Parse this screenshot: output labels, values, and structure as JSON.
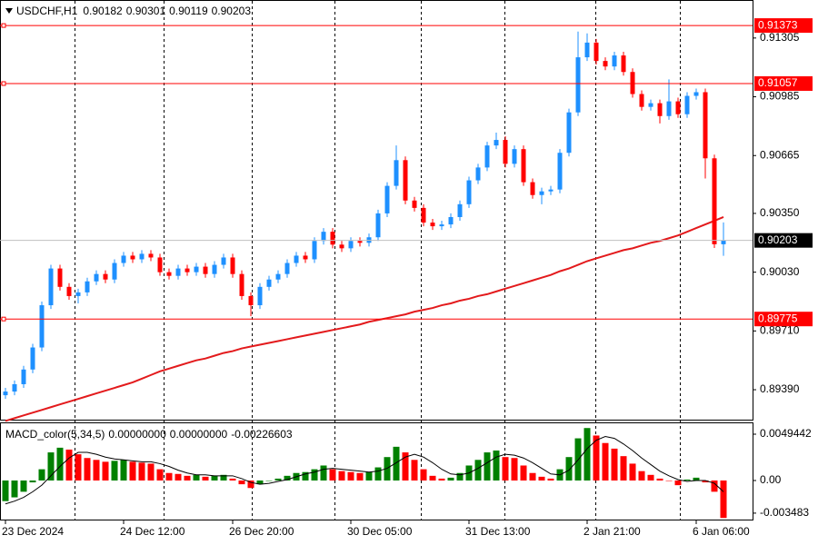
{
  "chart_data": [
    {
      "type": "candlestick",
      "symbol": "USDCHF,H1",
      "categories": [
        "23 Dec 2024",
        null,
        null,
        null,
        null,
        null,
        null,
        null,
        null,
        null,
        null,
        null,
        null,
        "24 Dec 12:00",
        null,
        null,
        null,
        null,
        null,
        null,
        null,
        null,
        null,
        null,
        null,
        "26 Dec 20:00",
        null,
        null,
        null,
        null,
        null,
        null,
        null,
        null,
        null,
        null,
        null,
        null,
        "30 Dec 05:00",
        null,
        null,
        null,
        null,
        null,
        null,
        null,
        null,
        null,
        null,
        null,
        null,
        "31 Dec 13:00",
        null,
        null,
        null,
        null,
        null,
        null,
        null,
        null,
        null,
        null,
        null,
        null,
        "2 Jan 21:00",
        null,
        null,
        null,
        null,
        null,
        null,
        null,
        null,
        null,
        null,
        null,
        "6 Jan 06:00",
        null,
        null,
        null
      ],
      "open": [
        0.8936,
        0.8938,
        0.8942,
        0.895,
        0.8962,
        0.8985,
        0.9005,
        0.8995,
        0.899,
        0.8992,
        0.8998,
        0.9002,
        0.8999,
        0.9008,
        0.9012,
        0.901,
        0.9013,
        0.9011,
        0.9003,
        0.9001,
        0.9005,
        0.9003,
        0.9006,
        0.9002,
        0.9007,
        0.9011,
        0.9002,
        0.899,
        0.8985,
        0.8995,
        0.8999,
        0.9002,
        0.9008,
        0.9012,
        0.901,
        0.902,
        0.9025,
        0.9018,
        0.9016,
        0.902,
        0.9019,
        0.9022,
        0.9035,
        0.905,
        0.9064,
        0.9042,
        0.9038,
        0.903,
        0.9028,
        0.9029,
        0.9033,
        0.904,
        0.9053,
        0.906,
        0.9072,
        0.9075,
        0.9062,
        0.907,
        0.9052,
        0.9045,
        0.9047,
        0.9048,
        0.9068,
        0.909,
        0.912,
        0.9128,
        0.9118,
        0.9115,
        0.9121,
        0.9112,
        0.91,
        0.9093,
        0.9095,
        0.9088,
        0.9096,
        0.9089,
        0.9099,
        0.9101,
        0.9065,
        0.90182
      ],
      "high": [
        0.894,
        0.8944,
        0.8952,
        0.8964,
        0.8987,
        0.9007,
        0.9007,
        0.8997,
        0.8994,
        0.9,
        0.9004,
        0.9004,
        0.901,
        0.9014,
        0.9014,
        0.9015,
        0.9015,
        0.9013,
        0.9005,
        0.9007,
        0.9007,
        0.9008,
        0.9008,
        0.9009,
        0.9013,
        0.9013,
        0.9004,
        0.8992,
        0.8997,
        0.9001,
        0.9004,
        0.901,
        0.9014,
        0.9014,
        0.9022,
        0.9027,
        0.9027,
        0.902,
        0.9022,
        0.9022,
        0.9024,
        0.9037,
        0.9052,
        0.9072,
        0.9066,
        0.9044,
        0.904,
        0.9032,
        0.9031,
        0.9035,
        0.9042,
        0.9055,
        0.9062,
        0.9074,
        0.9079,
        0.9077,
        0.9072,
        0.9072,
        0.9054,
        0.9049,
        0.905,
        0.907,
        0.9092,
        0.9134,
        0.9133,
        0.913,
        0.912,
        0.9123,
        0.9123,
        0.9114,
        0.9102,
        0.9097,
        0.9097,
        0.9108,
        0.9098,
        0.9101,
        0.9103,
        0.9103,
        0.9067,
        0.90301
      ],
      "low": [
        0.8934,
        0.8936,
        0.894,
        0.8948,
        0.896,
        0.8983,
        0.8993,
        0.8988,
        0.8986,
        0.899,
        0.8996,
        0.8997,
        0.8997,
        0.9006,
        0.9008,
        0.9008,
        0.9009,
        0.9001,
        0.8999,
        0.8999,
        0.9001,
        0.9001,
        0.9,
        0.9,
        0.9005,
        0.9,
        0.8988,
        0.8979,
        0.8983,
        0.8993,
        0.8997,
        0.9,
        0.9006,
        0.9008,
        0.9008,
        0.9018,
        0.9016,
        0.9014,
        0.9014,
        0.9017,
        0.9017,
        0.902,
        0.9033,
        0.9048,
        0.904,
        0.9036,
        0.9028,
        0.9026,
        0.9026,
        0.9027,
        0.9031,
        0.9038,
        0.9051,
        0.9058,
        0.907,
        0.906,
        0.906,
        0.905,
        0.9043,
        0.904,
        0.9045,
        0.9046,
        0.9066,
        0.9088,
        0.9118,
        0.9116,
        0.9113,
        0.9113,
        0.911,
        0.9098,
        0.9091,
        0.9091,
        0.9084,
        0.9086,
        0.9087,
        0.9087,
        0.9097,
        0.9054,
        0.90162,
        0.90119
      ],
      "close": [
        0.8938,
        0.8942,
        0.895,
        0.8962,
        0.8985,
        0.9005,
        0.8995,
        0.899,
        0.8992,
        0.8998,
        0.9002,
        0.8999,
        0.9008,
        0.9012,
        0.901,
        0.9013,
        0.9011,
        0.9003,
        0.9001,
        0.9005,
        0.9003,
        0.9006,
        0.9002,
        0.9007,
        0.9011,
        0.9002,
        0.899,
        0.8985,
        0.8995,
        0.8999,
        0.9002,
        0.9008,
        0.9012,
        0.901,
        0.902,
        0.9025,
        0.9018,
        0.9016,
        0.902,
        0.9019,
        0.9022,
        0.9035,
        0.905,
        0.9064,
        0.9042,
        0.9038,
        0.903,
        0.9028,
        0.9029,
        0.9033,
        0.904,
        0.9053,
        0.906,
        0.9072,
        0.9075,
        0.9062,
        0.907,
        0.9052,
        0.9045,
        0.9047,
        0.9048,
        0.9068,
        0.909,
        0.912,
        0.9128,
        0.9118,
        0.9115,
        0.9121,
        0.9112,
        0.91,
        0.9093,
        0.9095,
        0.9088,
        0.9096,
        0.9089,
        0.9099,
        0.9101,
        0.9065,
        0.90182,
        0.90203
      ],
      "up_color": "#1e90ff",
      "down_color": "#ff0000",
      "moving_average": {
        "color": "#e31a1c",
        "values": [
          0.8922,
          0.89235,
          0.8925,
          0.89265,
          0.8928,
          0.89295,
          0.8931,
          0.89325,
          0.8934,
          0.89355,
          0.8937,
          0.89385,
          0.894,
          0.89415,
          0.8943,
          0.8945,
          0.8947,
          0.8949,
          0.89505,
          0.8952,
          0.89535,
          0.8955,
          0.8956,
          0.89575,
          0.8959,
          0.896,
          0.89615,
          0.89625,
          0.89635,
          0.89645,
          0.89655,
          0.89665,
          0.89675,
          0.89685,
          0.89695,
          0.89705,
          0.89715,
          0.89725,
          0.89735,
          0.89745,
          0.8976,
          0.8977,
          0.8978,
          0.8979,
          0.898,
          0.89815,
          0.89825,
          0.89835,
          0.8985,
          0.8986,
          0.89875,
          0.89885,
          0.899,
          0.8991,
          0.89925,
          0.8994,
          0.89955,
          0.8997,
          0.89985,
          0.9,
          0.90015,
          0.90035,
          0.9005,
          0.9007,
          0.9009,
          0.90105,
          0.9012,
          0.90135,
          0.9015,
          0.9016,
          0.90175,
          0.9019,
          0.902,
          0.90215,
          0.9023,
          0.9025,
          0.9027,
          0.9029,
          0.9031,
          0.9033
        ]
      },
      "levels": [
        {
          "value": 0.91373,
          "color": "#ff0000"
        },
        {
          "value": 0.91057,
          "color": "#ff0000"
        },
        {
          "value": 0.89775,
          "color": "#ff0000"
        }
      ],
      "last_price_color": "#000000",
      "ylim": [
        0.89227,
        0.91507
      ],
      "yticks": [
        0.91305,
        0.90985,
        0.90665,
        {
          "value": 0.9035,
          "label": "0.90350"
        },
        {
          "value": 0.9003,
          "label": "0.90030"
        },
        {
          "value": 0.8971,
          "label": "0.89710"
        },
        {
          "value": 0.8939,
          "label": "0.89390"
        }
      ]
    },
    {
      "type": "macd",
      "title": "MACD_color(5,34,5)",
      "readouts": [
        "0.00000000",
        "0.00000000",
        "-0.00226603"
      ],
      "histogram": [
        -0.0022,
        -0.0018,
        -0.0012,
        -0.0002,
        0.0012,
        0.003,
        0.0035,
        0.0033,
        0.0028,
        0.0024,
        0.0022,
        0.002,
        0.0021,
        0.0022,
        0.002,
        0.0019,
        0.0018,
        0.0012,
        0.0008,
        0.0007,
        0.0005,
        0.0006,
        0.0004,
        0.0005,
        0.0006,
        0.0002,
        -0.0004,
        -0.0008,
        -0.0004,
        0.0,
        0.0002,
        0.0005,
        0.0008,
        0.0009,
        0.0012,
        0.0016,
        0.0012,
        0.001,
        0.0009,
        0.0008,
        0.0009,
        0.0014,
        0.0025,
        0.0036,
        0.003,
        0.0022,
        0.0012,
        0.0005,
        0.0002,
        0.0003,
        0.0008,
        0.0016,
        0.0022,
        0.003,
        0.0032,
        0.0025,
        0.0024,
        0.0016,
        0.0008,
        0.0004,
        0.0002,
        0.0012,
        0.0025,
        0.0045,
        0.0056,
        0.0048,
        0.004,
        0.0034,
        0.0026,
        0.0018,
        0.001,
        0.0006,
        0.0002,
        0.0,
        -0.0005,
        0.0001,
        0.0003,
        -0.0002,
        -0.0012,
        -0.004
      ],
      "signal": [
        -0.0025,
        -0.0022,
        -0.0018,
        -0.0012,
        -0.0005,
        0.0005,
        0.0015,
        0.0024,
        0.003,
        0.003,
        0.0028,
        0.0025,
        0.0023,
        0.0022,
        0.0021,
        0.002,
        0.002,
        0.0018,
        0.0015,
        0.0011,
        0.0008,
        0.0006,
        0.0006,
        0.0005,
        0.0005,
        0.0005,
        0.0002,
        -0.0002,
        -0.0004,
        -0.0003,
        -0.0001,
        0.0001,
        0.0004,
        0.0007,
        0.0009,
        0.0012,
        0.0013,
        0.0012,
        0.0011,
        0.001,
        0.0009,
        0.001,
        0.0013,
        0.0019,
        0.0025,
        0.0028,
        0.0025,
        0.0019,
        0.0012,
        0.0007,
        0.0006,
        0.0008,
        0.0013,
        0.0019,
        0.0025,
        0.0028,
        0.0027,
        0.0024,
        0.0019,
        0.0013,
        0.0007,
        0.0006,
        0.0011,
        0.0022,
        0.0034,
        0.0043,
        0.0047,
        0.0045,
        0.0039,
        0.0032,
        0.0024,
        0.0017,
        0.001,
        0.0005,
        0.0001,
        -0.0001,
        0.0,
        0.0,
        -0.0003,
        -0.0012
      ],
      "up_color": "#008000",
      "down_color": "#ff0000",
      "signal_color": "#000000",
      "ylim": [
        -0.00417,
        0.006107
      ],
      "yticks": [
        0.0049442,
        {
          "value": 0,
          "label": "0.00"
        },
        -0.003483
      ]
    }
  ]
}
